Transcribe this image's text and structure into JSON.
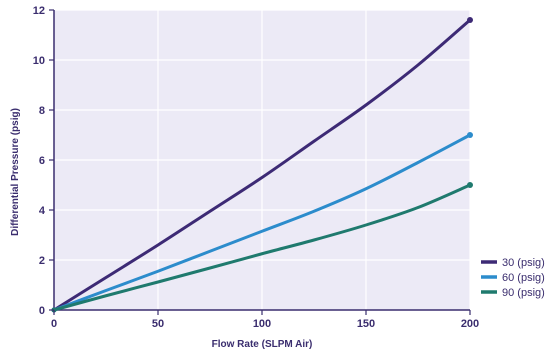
{
  "chart_data": {
    "type": "line",
    "title": "",
    "xlabel": "Flow Rate (SLPM Air)",
    "ylabel": "Differential Pressure (psig)",
    "xlim": [
      0,
      200
    ],
    "ylim": [
      0,
      12
    ],
    "xticks": [
      "0",
      "50",
      "100",
      "150",
      "200"
    ],
    "yticks": [
      "0",
      "2",
      "4",
      "6",
      "8",
      "10",
      "12"
    ],
    "grid": true,
    "legend_position": "bottom-right",
    "plot_background": "#eceaf6",
    "grid_color": "#ffffff",
    "series": [
      {
        "name": "30 (psig)",
        "color": "#3d2a75",
        "x": [
          0,
          25,
          50,
          75,
          100,
          125,
          150,
          175,
          200
        ],
        "y": [
          0,
          1.3,
          2.6,
          3.95,
          5.3,
          6.75,
          8.2,
          9.8,
          11.6
        ]
      },
      {
        "name": "60 (psig)",
        "color": "#2c8ccc",
        "x": [
          0,
          25,
          50,
          75,
          100,
          125,
          150,
          175,
          200
        ],
        "y": [
          0,
          0.78,
          1.55,
          2.35,
          3.15,
          3.95,
          4.85,
          5.9,
          7.0
        ]
      },
      {
        "name": "90 (psig)",
        "color": "#1f7a6e",
        "x": [
          0,
          25,
          50,
          75,
          100,
          125,
          150,
          175,
          200
        ],
        "y": [
          0,
          0.57,
          1.12,
          1.68,
          2.25,
          2.8,
          3.4,
          4.1,
          5.0
        ]
      }
    ]
  }
}
